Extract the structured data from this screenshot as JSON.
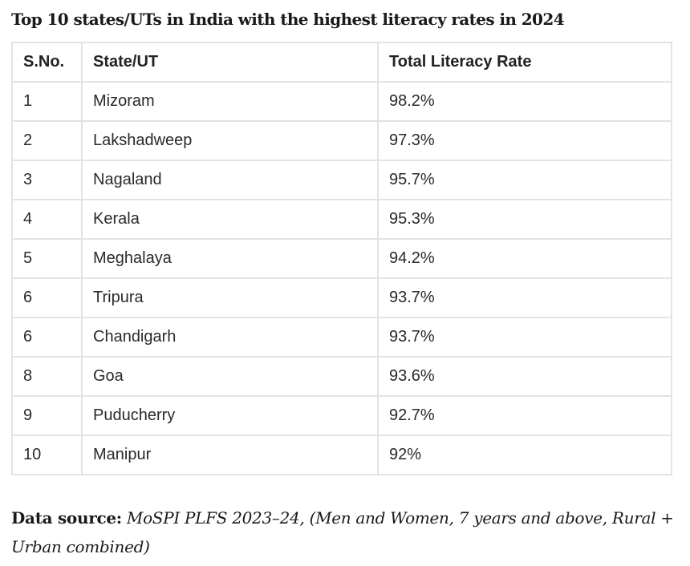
{
  "title": "Top 10 states/UTs in India with the highest literacy rates in 2024",
  "table": {
    "headers": [
      "S.No.",
      "State/UT",
      "Total Literacy Rate"
    ],
    "rows": [
      [
        "1",
        "Mizoram",
        "98.2%"
      ],
      [
        "2",
        "Lakshadweep",
        "97.3%"
      ],
      [
        "3",
        "Nagaland",
        "95.7%"
      ],
      [
        "4",
        "Kerala",
        "95.3%"
      ],
      [
        "5",
        "Meghalaya",
        "94.2%"
      ],
      [
        "6",
        "Tripura",
        "93.7%"
      ],
      [
        "6",
        "Chandigarh",
        "93.7%"
      ],
      [
        "8",
        "Goa",
        "93.6%"
      ],
      [
        "9",
        "Puducherry",
        "92.7%"
      ],
      [
        "10",
        "Manipur",
        "92%"
      ]
    ]
  },
  "source": {
    "label": "Data source:",
    "text": "MoSPI PLFS 2023–24, (Men and Women, 7 years and above, Rural + Urban combined)"
  }
}
